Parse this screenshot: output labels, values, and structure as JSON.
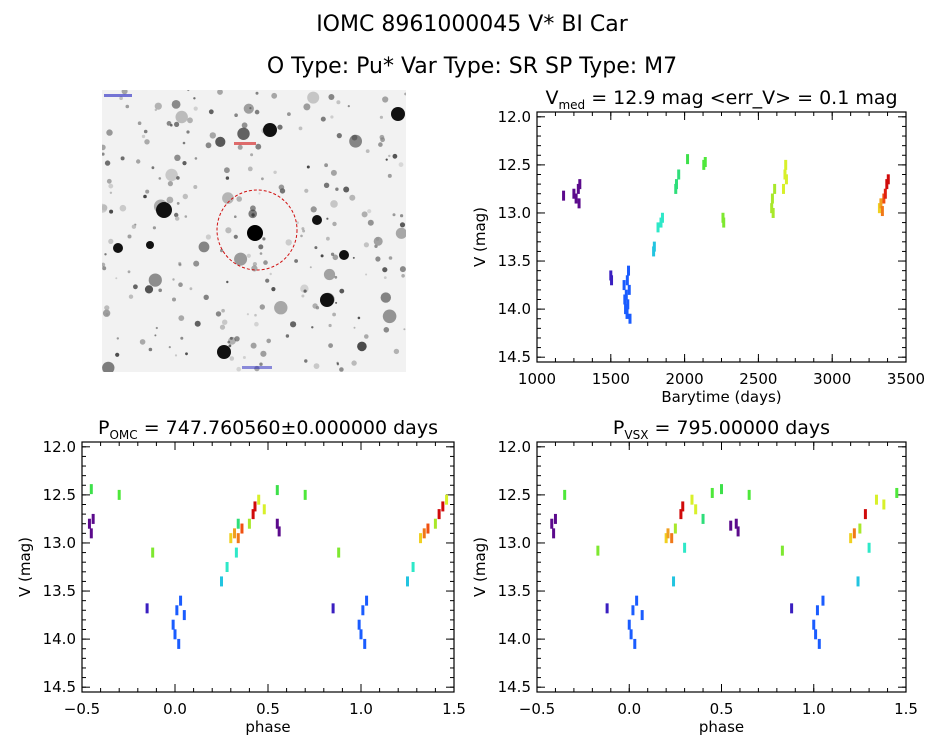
{
  "title_line1": "IOMC 8961000045     V* BI Car",
  "title_line2": "O Type: Pu*   Var Type: SR   SP Type: M7",
  "finder_chart": {
    "target_marker": "red dashed circle",
    "tiny_labels": [
      "",
      ""
    ]
  },
  "chart_data": [
    {
      "type": "scatter",
      "panel": "top-right",
      "title_parts": [
        "V",
        "med",
        " = 12.9 mag <err_V> = 0.1 mag"
      ],
      "xlabel": "Barytime (days)",
      "ylabel": "V (mag)",
      "xlim": [
        1000,
        3500
      ],
      "ylim": [
        14.55,
        11.95
      ],
      "xticks": [
        "1000",
        "1500",
        "2000",
        "2500",
        "3000",
        "3500"
      ],
      "yticks": [
        "12.0",
        "12.5",
        "13.0",
        "13.5",
        "14.0",
        "14.5"
      ],
      "grid": false,
      "points": [
        {
          "x": 1180,
          "y": 12.82,
          "color": "#5b0a8c"
        },
        {
          "x": 1250,
          "y": 12.8,
          "color": "#5b0a8c"
        },
        {
          "x": 1265,
          "y": 12.85,
          "color": "#5b0a8c"
        },
        {
          "x": 1280,
          "y": 12.75,
          "color": "#5b0a8c"
        },
        {
          "x": 1285,
          "y": 12.9,
          "color": "#5b0a8c"
        },
        {
          "x": 1290,
          "y": 12.7,
          "color": "#5b0a8c"
        },
        {
          "x": 1500,
          "y": 13.65,
          "color": "#3a1fc0"
        },
        {
          "x": 1505,
          "y": 13.7,
          "color": "#3a1fc0"
        },
        {
          "x": 1590,
          "y": 13.75,
          "color": "#1a5cff"
        },
        {
          "x": 1595,
          "y": 13.9,
          "color": "#1a5cff"
        },
        {
          "x": 1600,
          "y": 14.0,
          "color": "#1a5cff"
        },
        {
          "x": 1605,
          "y": 13.85,
          "color": "#1a5cff"
        },
        {
          "x": 1610,
          "y": 14.05,
          "color": "#1a5cff"
        },
        {
          "x": 1612,
          "y": 13.7,
          "color": "#1a5cff"
        },
        {
          "x": 1615,
          "y": 13.95,
          "color": "#1a5cff"
        },
        {
          "x": 1620,
          "y": 13.6,
          "color": "#1a5cff"
        },
        {
          "x": 1625,
          "y": 13.8,
          "color": "#1a5cff"
        },
        {
          "x": 1630,
          "y": 14.1,
          "color": "#1a5cff"
        },
        {
          "x": 1790,
          "y": 13.4,
          "color": "#22c4e0"
        },
        {
          "x": 1795,
          "y": 13.35,
          "color": "#22c4e0"
        },
        {
          "x": 1820,
          "y": 13.15,
          "color": "#2ee8c8"
        },
        {
          "x": 1840,
          "y": 13.1,
          "color": "#2ee8c8"
        },
        {
          "x": 1850,
          "y": 13.05,
          "color": "#2ee8c8"
        },
        {
          "x": 1940,
          "y": 12.75,
          "color": "#2ede7a"
        },
        {
          "x": 1945,
          "y": 12.7,
          "color": "#2ede7a"
        },
        {
          "x": 1960,
          "y": 12.6,
          "color": "#2ede7a"
        },
        {
          "x": 2020,
          "y": 12.44,
          "color": "#3de04a"
        },
        {
          "x": 2130,
          "y": 12.5,
          "color": "#4ee83a"
        },
        {
          "x": 2140,
          "y": 12.47,
          "color": "#4ee83a"
        },
        {
          "x": 2260,
          "y": 13.05,
          "color": "#7ee830"
        },
        {
          "x": 2265,
          "y": 13.1,
          "color": "#7ee830"
        },
        {
          "x": 2590,
          "y": 12.95,
          "color": "#a8e82a"
        },
        {
          "x": 2595,
          "y": 12.85,
          "color": "#a8e82a"
        },
        {
          "x": 2600,
          "y": 13.0,
          "color": "#a8e82a"
        },
        {
          "x": 2610,
          "y": 12.75,
          "color": "#a8e82a"
        },
        {
          "x": 2670,
          "y": 12.75,
          "color": "#d8f02a"
        },
        {
          "x": 2680,
          "y": 12.6,
          "color": "#d8f02a"
        },
        {
          "x": 2685,
          "y": 12.5,
          "color": "#d8f02a"
        },
        {
          "x": 2690,
          "y": 12.65,
          "color": "#d8f02a"
        },
        {
          "x": 3320,
          "y": 12.95,
          "color": "#f0d020"
        },
        {
          "x": 3330,
          "y": 12.9,
          "color": "#f0a020"
        },
        {
          "x": 3340,
          "y": 12.98,
          "color": "#f07818"
        },
        {
          "x": 3350,
          "y": 12.85,
          "color": "#f05010"
        },
        {
          "x": 3360,
          "y": 12.8,
          "color": "#e02010"
        },
        {
          "x": 3370,
          "y": 12.7,
          "color": "#d00a0a"
        },
        {
          "x": 3380,
          "y": 12.65,
          "color": "#d00a0a"
        }
      ]
    },
    {
      "type": "scatter",
      "panel": "bottom-left",
      "title_parts": [
        "P",
        "OMC",
        " = 747.760560±0.000000 days"
      ],
      "xlabel": "phase",
      "ylabel": "V (mag)",
      "xlim": [
        -0.5,
        1.5
      ],
      "ylim": [
        14.55,
        11.95
      ],
      "xticks": [
        "−0.5",
        "0.0",
        "0.5",
        "1.0",
        "1.5"
      ],
      "yticks": [
        "12.0",
        "12.5",
        "13.0",
        "13.5",
        "14.0",
        "14.5"
      ],
      "grid": false,
      "points": [
        {
          "x": -0.45,
          "y": 12.44,
          "color": "#3de04a"
        },
        {
          "x": -0.3,
          "y": 12.5,
          "color": "#4ee83a"
        },
        {
          "x": -0.46,
          "y": 12.8,
          "color": "#5b0a8c"
        },
        {
          "x": -0.45,
          "y": 12.9,
          "color": "#5b0a8c"
        },
        {
          "x": -0.44,
          "y": 12.75,
          "color": "#5b0a8c"
        },
        {
          "x": -0.12,
          "y": 13.1,
          "color": "#7ee830"
        },
        {
          "x": -0.15,
          "y": 13.68,
          "color": "#3a1fc0"
        },
        {
          "x": -0.01,
          "y": 13.85,
          "color": "#1a5cff"
        },
        {
          "x": 0.0,
          "y": 13.95,
          "color": "#1a5cff"
        },
        {
          "x": 0.01,
          "y": 13.7,
          "color": "#1a5cff"
        },
        {
          "x": 0.02,
          "y": 14.05,
          "color": "#1a5cff"
        },
        {
          "x": 0.03,
          "y": 13.6,
          "color": "#1a5cff"
        },
        {
          "x": 0.05,
          "y": 13.75,
          "color": "#1a5cff"
        },
        {
          "x": 0.25,
          "y": 13.4,
          "color": "#22c4e0"
        },
        {
          "x": 0.28,
          "y": 13.25,
          "color": "#2ee8c8"
        },
        {
          "x": 0.33,
          "y": 13.1,
          "color": "#2ee8c8"
        },
        {
          "x": 0.3,
          "y": 12.95,
          "color": "#f0d020"
        },
        {
          "x": 0.32,
          "y": 12.9,
          "color": "#f0a020"
        },
        {
          "x": 0.34,
          "y": 12.95,
          "color": "#f07818"
        },
        {
          "x": 0.36,
          "y": 12.85,
          "color": "#f05010"
        },
        {
          "x": 0.34,
          "y": 12.8,
          "color": "#2ede7a"
        },
        {
          "x": 0.4,
          "y": 12.8,
          "color": "#a8e82a"
        },
        {
          "x": 0.42,
          "y": 12.7,
          "color": "#d00a0a"
        },
        {
          "x": 0.43,
          "y": 12.62,
          "color": "#d00a0a"
        },
        {
          "x": 0.45,
          "y": 12.55,
          "color": "#d8f02a"
        },
        {
          "x": 0.48,
          "y": 12.65,
          "color": "#d8f02a"
        },
        {
          "x": 0.55,
          "y": 12.45,
          "color": "#3de04a"
        },
        {
          "x": 0.55,
          "y": 12.8,
          "color": "#5b0a8c"
        },
        {
          "x": 0.56,
          "y": 12.88,
          "color": "#5b0a8c"
        },
        {
          "x": 0.7,
          "y": 12.5,
          "color": "#4ee83a"
        },
        {
          "x": 0.88,
          "y": 13.1,
          "color": "#7ee830"
        },
        {
          "x": 0.85,
          "y": 13.68,
          "color": "#3a1fc0"
        },
        {
          "x": 0.99,
          "y": 13.85,
          "color": "#1a5cff"
        },
        {
          "x": 1.0,
          "y": 13.95,
          "color": "#1a5cff"
        },
        {
          "x": 1.01,
          "y": 13.7,
          "color": "#1a5cff"
        },
        {
          "x": 1.02,
          "y": 14.05,
          "color": "#1a5cff"
        },
        {
          "x": 1.03,
          "y": 13.6,
          "color": "#1a5cff"
        },
        {
          "x": 1.25,
          "y": 13.4,
          "color": "#22c4e0"
        },
        {
          "x": 1.28,
          "y": 13.25,
          "color": "#2ee8c8"
        },
        {
          "x": 1.32,
          "y": 12.95,
          "color": "#f0d020"
        },
        {
          "x": 1.34,
          "y": 12.9,
          "color": "#f07818"
        },
        {
          "x": 1.36,
          "y": 12.85,
          "color": "#f05010"
        },
        {
          "x": 1.4,
          "y": 12.8,
          "color": "#a8e82a"
        },
        {
          "x": 1.42,
          "y": 12.7,
          "color": "#d00a0a"
        },
        {
          "x": 1.44,
          "y": 12.62,
          "color": "#d00a0a"
        },
        {
          "x": 1.46,
          "y": 12.55,
          "color": "#d8f02a"
        }
      ]
    },
    {
      "type": "scatter",
      "panel": "bottom-right",
      "title_parts": [
        "P",
        "VSX",
        " = 795.00000 days"
      ],
      "xlabel": "phase",
      "ylabel": "V (mag)",
      "xlim": [
        -0.5,
        1.5
      ],
      "ylim": [
        14.55,
        11.95
      ],
      "xticks": [
        "−0.5",
        "0.0",
        "0.5",
        "1.0",
        "1.5"
      ],
      "yticks": [
        "12.0",
        "12.5",
        "13.0",
        "13.5",
        "14.0",
        "14.5"
      ],
      "grid": false,
      "points": [
        {
          "x": -0.35,
          "y": 12.5,
          "color": "#4ee83a"
        },
        {
          "x": -0.42,
          "y": 12.8,
          "color": "#5b0a8c"
        },
        {
          "x": -0.41,
          "y": 12.9,
          "color": "#5b0a8c"
        },
        {
          "x": -0.4,
          "y": 12.75,
          "color": "#5b0a8c"
        },
        {
          "x": -0.17,
          "y": 13.08,
          "color": "#7ee830"
        },
        {
          "x": -0.12,
          "y": 13.68,
          "color": "#3a1fc0"
        },
        {
          "x": 0.0,
          "y": 13.85,
          "color": "#1a5cff"
        },
        {
          "x": 0.01,
          "y": 13.95,
          "color": "#1a5cff"
        },
        {
          "x": 0.02,
          "y": 13.7,
          "color": "#1a5cff"
        },
        {
          "x": 0.03,
          "y": 14.05,
          "color": "#1a5cff"
        },
        {
          "x": 0.04,
          "y": 13.6,
          "color": "#1a5cff"
        },
        {
          "x": 0.07,
          "y": 13.75,
          "color": "#1a5cff"
        },
        {
          "x": 0.24,
          "y": 13.4,
          "color": "#22c4e0"
        },
        {
          "x": 0.2,
          "y": 12.95,
          "color": "#f0d020"
        },
        {
          "x": 0.21,
          "y": 12.9,
          "color": "#f0a020"
        },
        {
          "x": 0.23,
          "y": 12.95,
          "color": "#f07818"
        },
        {
          "x": 0.25,
          "y": 12.85,
          "color": "#a8e82a"
        },
        {
          "x": 0.28,
          "y": 12.7,
          "color": "#d00a0a"
        },
        {
          "x": 0.29,
          "y": 12.62,
          "color": "#d00a0a"
        },
        {
          "x": 0.3,
          "y": 13.05,
          "color": "#2ee8c8"
        },
        {
          "x": 0.34,
          "y": 12.55,
          "color": "#d8f02a"
        },
        {
          "x": 0.36,
          "y": 12.65,
          "color": "#d8f02a"
        },
        {
          "x": 0.4,
          "y": 12.75,
          "color": "#2ede7a"
        },
        {
          "x": 0.45,
          "y": 12.48,
          "color": "#4ee83a"
        },
        {
          "x": 0.5,
          "y": 12.44,
          "color": "#3de04a"
        },
        {
          "x": 0.55,
          "y": 12.82,
          "color": "#5b0a8c"
        },
        {
          "x": 0.58,
          "y": 12.8,
          "color": "#5b0a8c"
        },
        {
          "x": 0.59,
          "y": 12.88,
          "color": "#5b0a8c"
        },
        {
          "x": 0.65,
          "y": 12.5,
          "color": "#4ee83a"
        },
        {
          "x": 0.83,
          "y": 13.08,
          "color": "#7ee830"
        },
        {
          "x": 0.88,
          "y": 13.68,
          "color": "#3a1fc0"
        },
        {
          "x": 1.0,
          "y": 13.85,
          "color": "#1a5cff"
        },
        {
          "x": 1.01,
          "y": 13.95,
          "color": "#1a5cff"
        },
        {
          "x": 1.02,
          "y": 13.7,
          "color": "#1a5cff"
        },
        {
          "x": 1.03,
          "y": 14.05,
          "color": "#1a5cff"
        },
        {
          "x": 1.05,
          "y": 13.6,
          "color": "#1a5cff"
        },
        {
          "x": 1.24,
          "y": 13.4,
          "color": "#22c4e0"
        },
        {
          "x": 1.2,
          "y": 12.95,
          "color": "#f0d020"
        },
        {
          "x": 1.22,
          "y": 12.9,
          "color": "#f07818"
        },
        {
          "x": 1.25,
          "y": 12.85,
          "color": "#a8e82a"
        },
        {
          "x": 1.28,
          "y": 12.7,
          "color": "#d00a0a"
        },
        {
          "x": 1.3,
          "y": 13.05,
          "color": "#2ee8c8"
        },
        {
          "x": 1.34,
          "y": 12.55,
          "color": "#d8f02a"
        },
        {
          "x": 1.38,
          "y": 12.6,
          "color": "#d8f02a"
        },
        {
          "x": 1.45,
          "y": 12.48,
          "color": "#4ee83a"
        }
      ]
    }
  ]
}
